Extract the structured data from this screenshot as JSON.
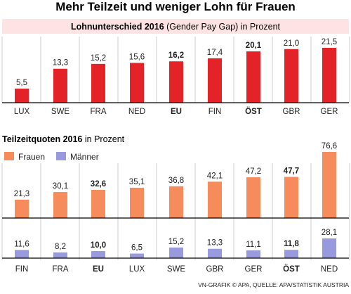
{
  "title": "Mehr Teilzeit und weniger Lohn für Frauen",
  "source": "VN-GRAFIK © APA, QUELLE: APA/STATISTIK AUSTRIA",
  "colors": {
    "banner_bg": "#fde3e3",
    "red_bar": "#e42328",
    "frauen": "#f68c5b",
    "maenner": "#9999dd",
    "grid": "#cccccc",
    "axis": "#000000"
  },
  "chart_data": [
    {
      "type": "bar",
      "title_bold": "Lohnunterschied 2016",
      "title_rest": " (Gender Pay Gap) in Prozent",
      "categories": [
        "LUX",
        "SWE",
        "FRA",
        "NED",
        "EU",
        "FIN",
        "ÖST",
        "GBR",
        "GER"
      ],
      "values": [
        5.5,
        13.3,
        15.2,
        15.6,
        16.2,
        17.4,
        20.1,
        21.0,
        21.5
      ],
      "value_labels": [
        "5,5",
        "13,3",
        "15,2",
        "15,6",
        "16,2",
        "17,4",
        "20,1",
        "21,0",
        "21,5"
      ],
      "highlight": [
        "EU",
        "ÖST"
      ],
      "ylim": [
        0,
        24
      ],
      "grid": true
    },
    {
      "type": "bar",
      "title_bold": "Teilzeitquoten 2016",
      "title_rest": " in Prozent",
      "legend": [
        "Frauen",
        "Männer"
      ],
      "categories": [
        "FIN",
        "FRA",
        "EU",
        "LUX",
        "SWE",
        "GBR",
        "GER",
        "ÖST",
        "NED"
      ],
      "highlight": [
        "EU",
        "ÖST"
      ],
      "series": [
        {
          "name": "Frauen",
          "values": [
            21.3,
            30.1,
            32.6,
            35.1,
            36.8,
            42.1,
            47.2,
            47.7,
            76.6
          ],
          "value_labels": [
            "21,3",
            "30,1",
            "32,6",
            "35,1",
            "36,8",
            "42,1",
            "47,2",
            "47,7",
            "76,6"
          ]
        },
        {
          "name": "Männer",
          "values": [
            11.6,
            8.2,
            10.0,
            6.5,
            15.2,
            13.3,
            11.1,
            11.8,
            28.1
          ],
          "value_labels": [
            "11,6",
            "8,2",
            "10,0",
            "6,5",
            "15,2",
            "13,3",
            "11,1",
            "11,8",
            "28,1"
          ]
        }
      ],
      "grid": true
    }
  ]
}
